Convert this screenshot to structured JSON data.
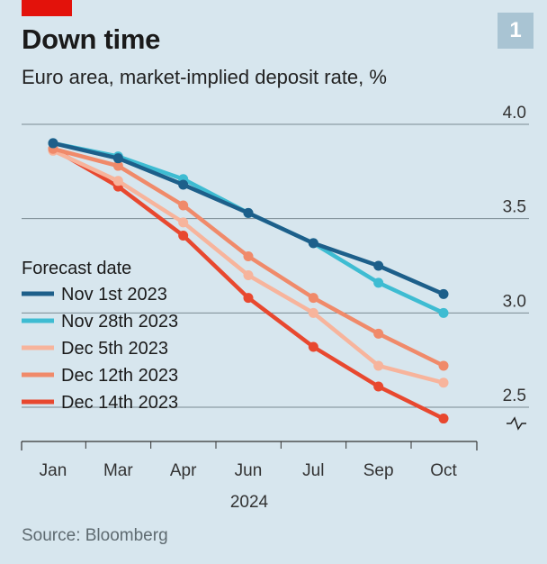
{
  "header": {
    "title": "Down time",
    "subtitle": "Euro area, market-implied deposit rate, %",
    "badge": "1"
  },
  "source": "Source: Bloomberg",
  "colors": {
    "background": "#d7e6ee",
    "brand_red": "#e3120b",
    "grid": "#7a8a92",
    "axis": "#333333"
  },
  "chart_data": {
    "type": "line",
    "title": "Down time",
    "subtitle": "Euro area, market-implied deposit rate, %",
    "x_tick_labels": [
      "Jan",
      "Mar",
      "Apr",
      "Jun",
      "Jul",
      "Sep",
      "Oct"
    ],
    "x_year_label": "2024",
    "x_index": [
      0,
      1,
      2,
      3,
      4,
      5,
      6
    ],
    "y_ticks": [
      2.5,
      3.0,
      3.5,
      4.0
    ],
    "y_tick_labels": [
      "2.5",
      "3.0",
      "3.5",
      "4.0"
    ],
    "ylim": [
      2.1,
      4.0
    ],
    "y_axis_break": true,
    "grid": true,
    "legend_title": "Forecast date",
    "legend_position": "left-middle",
    "series": [
      {
        "name": "Nov 1st 2023",
        "color": "#1d5f8a",
        "points": [
          [
            0,
            3.9
          ],
          [
            1,
            3.82
          ],
          [
            2,
            3.68
          ],
          [
            3,
            3.53
          ],
          [
            4,
            3.37
          ],
          [
            5,
            3.25
          ],
          [
            6,
            3.1
          ]
        ]
      },
      {
        "name": "Nov 28th 2023",
        "color": "#3ebcd2",
        "points": [
          [
            0,
            3.9
          ],
          [
            1,
            3.83
          ],
          [
            2,
            3.71
          ],
          [
            3,
            3.53
          ],
          [
            4,
            3.37
          ],
          [
            5,
            3.16
          ],
          [
            6,
            3.0
          ]
        ]
      },
      {
        "name": "Dec 5th 2023",
        "color": "#f7b49c",
        "points": [
          [
            0,
            3.86
          ],
          [
            1,
            3.7
          ],
          [
            2,
            3.48
          ],
          [
            3,
            3.2
          ],
          [
            4,
            3.0
          ],
          [
            5,
            2.72
          ],
          [
            6,
            2.63
          ]
        ]
      },
      {
        "name": "Dec 12th 2023",
        "color": "#f08a6a",
        "points": [
          [
            0,
            3.87
          ],
          [
            1,
            3.78
          ],
          [
            2,
            3.57
          ],
          [
            3,
            3.3
          ],
          [
            4,
            3.08
          ],
          [
            5,
            2.89
          ],
          [
            6,
            2.72
          ]
        ]
      },
      {
        "name": "Dec 14th 2023",
        "color": "#e8482f",
        "points": [
          [
            0,
            3.87
          ],
          [
            1,
            3.67
          ],
          [
            2,
            3.41
          ],
          [
            3,
            3.08
          ],
          [
            4,
            2.82
          ],
          [
            5,
            2.61
          ],
          [
            6,
            2.44
          ]
        ]
      }
    ]
  }
}
